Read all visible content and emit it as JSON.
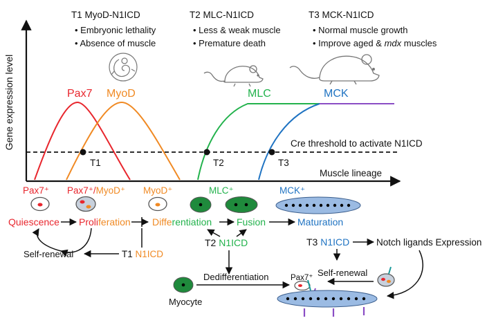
{
  "colors": {
    "pax7": "#e8262d",
    "myod": "#f08a24",
    "mlc": "#22b24c",
    "mck": "#1f73c2",
    "plateau": "#8a4dc4",
    "cell_fill": "#1f8a3c",
    "fiber_fill": "#9bbbe3",
    "text": "#111111",
    "orange_dot": "#f08a24",
    "red_dot": "#e8262d"
  },
  "axes": {
    "y_label": "Gene expression level",
    "x_label": "Muscle lineage"
  },
  "threshold_label": "Cre threshold to activate N1ICD",
  "timepoints": [
    {
      "title": "T1 MyoD-N1ICD",
      "bullets": [
        "Embryonic lethality",
        "Absence of muscle"
      ],
      "marker": "T1",
      "icon": "embryo-icon"
    },
    {
      "title": "T2 MLC-N1ICD",
      "bullets": [
        "Less & weak muscle",
        "Premature death"
      ],
      "marker": "T2",
      "icon": "mouse-icon"
    },
    {
      "title": "T3 MCK-N1ICD",
      "bullets": [
        "Normal muscle growth",
        "Improve aged & mdx muscles"
      ],
      "marker": "T3",
      "icon": "mouse-icon"
    }
  ],
  "curve_labels": {
    "pax7": "Pax7",
    "myod": "MyoD",
    "mlc": "MLC",
    "mck": "MCK"
  },
  "stage_labels": {
    "pax7": "Pax7⁺",
    "pax7_part": "Pax7⁺/",
    "myod_part": "MyoD⁺",
    "myod": "MyoD⁺",
    "mlc": "MLC⁺",
    "mck": "MCK⁺"
  },
  "process": {
    "quiescence": "Quiescence",
    "proli_red": "Proli",
    "feration_orange": "feration",
    "diffe_orange": "Diffe",
    "rentiation_green": "rentiation",
    "fusion": "Fusion",
    "maturation": "Maturation",
    "self_renewal": "Self-renewal",
    "t1_prefix": "T1 ",
    "t1_n1icd": "N1ICD",
    "t2_prefix": "T2 ",
    "t2_n1icd": "N1ICD",
    "t3_prefix": "T3 ",
    "t3_n1icd": "N1ICD",
    "notch": "Notch ligands Expression",
    "self_renewal_2": "Self-renewal",
    "dedifferentiation": "Dedifferentiation",
    "myocyte": "Myocyte",
    "pax7_small": "Pax7⁺"
  }
}
